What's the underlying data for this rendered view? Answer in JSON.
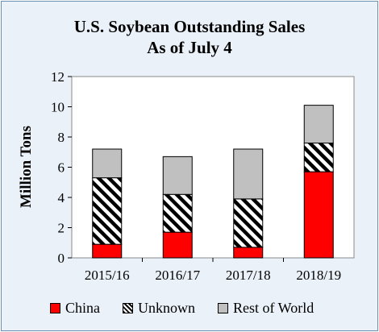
{
  "chart_data": {
    "type": "bar",
    "stacked": true,
    "title_line1": "U.S. Soybean Outstanding Sales",
    "title_line2": "As of July 4",
    "ylabel": "Million Tons",
    "ylim": [
      0,
      12
    ],
    "yticks": [
      "0",
      "2",
      "4",
      "6",
      "8",
      "10",
      "12"
    ],
    "grid": false,
    "legend_position": "bottom",
    "categories": [
      "2015/16",
      "2016/17",
      "2017/18",
      "2018/19"
    ],
    "series": [
      {
        "name": "China",
        "values": [
          0.9,
          1.7,
          0.7,
          5.7
        ],
        "color": "#ff0000",
        "pattern": "solid"
      },
      {
        "name": "Unknown",
        "values": [
          4.4,
          2.5,
          3.2,
          1.9
        ],
        "color": "#000000",
        "pattern": "diagonal-stripes"
      },
      {
        "name": "Rest of World",
        "values": [
          1.9,
          2.5,
          3.3,
          2.5
        ],
        "color": "#c0c0c0",
        "pattern": "solid"
      }
    ]
  }
}
